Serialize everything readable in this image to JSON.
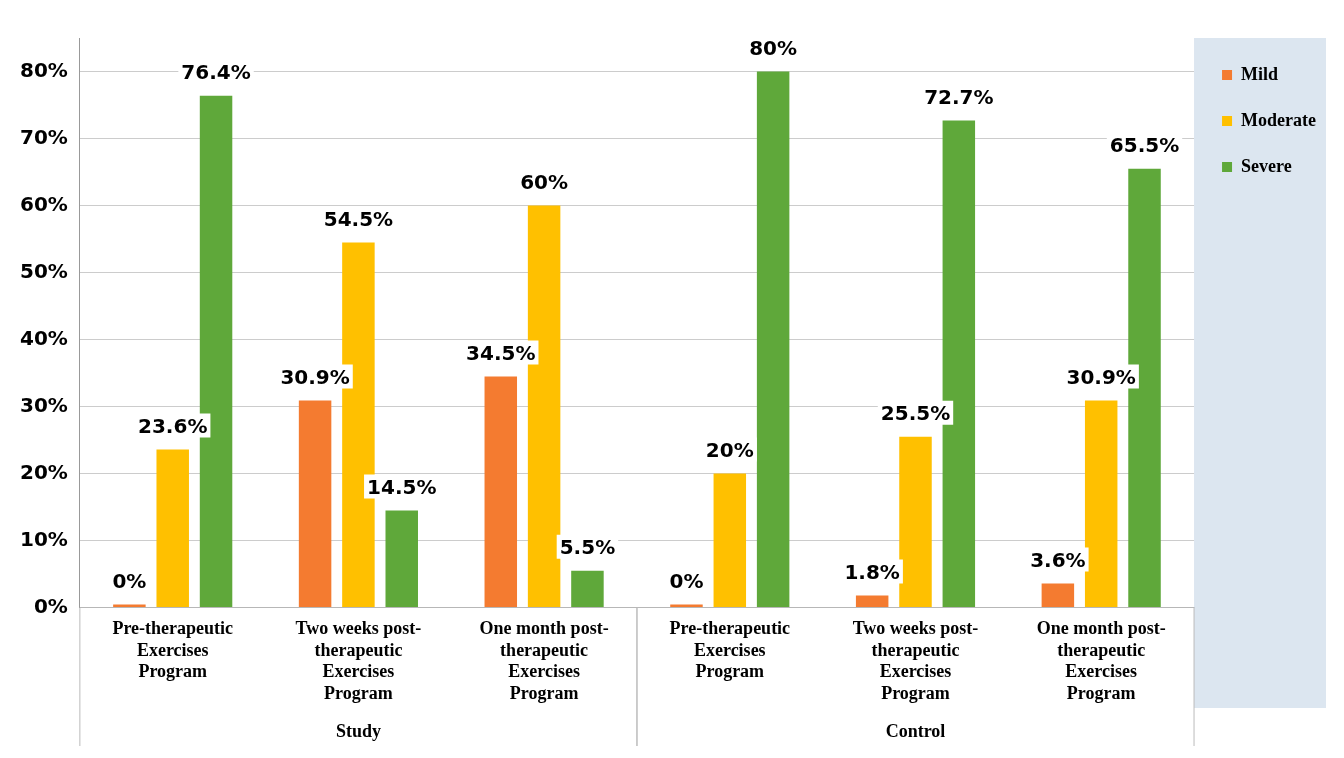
{
  "chart_data": {
    "type": "bar",
    "categories": [
      "Pre-therapeutic Exercises Program",
      "Two weeks post-therapeutic Exercises Program",
      "One month post-therapeutic Exercises Program",
      "Pre-therapeutic Exercises Program",
      "Two weeks post-therapeutic Exercises Program",
      "One month post-therapeutic Exercises Program"
    ],
    "series": [
      {
        "name": "Mild",
        "color": "#f47b30",
        "values": [
          0,
          30.9,
          34.5,
          0,
          1.8,
          3.6
        ],
        "value_labels": [
          "0%",
          "30.9%",
          "34.5%",
          "0%",
          "1.8%",
          "3.6%"
        ]
      },
      {
        "name": "Moderate",
        "color": "#ffc000",
        "values": [
          23.6,
          54.5,
          60,
          20,
          25.5,
          30.9
        ],
        "value_labels": [
          "23.6%",
          "54.5%",
          "60%",
          "20%",
          "25.5%",
          "30.9%"
        ]
      },
      {
        "name": "Severe",
        "color": "#5fa83a",
        "values": [
          76.4,
          14.5,
          5.5,
          80,
          72.7,
          65.5
        ],
        "value_labels": [
          "76.4%",
          "14.5%",
          "5.5%",
          "80%",
          "72.7%",
          "65.5%"
        ]
      }
    ],
    "ylim": [
      0,
      85
    ],
    "yticks": [
      {
        "value": 0,
        "label": "0%"
      },
      {
        "value": 10,
        "label": "10%"
      },
      {
        "value": 20,
        "label": "20%"
      },
      {
        "value": 30,
        "label": "30%"
      },
      {
        "value": 40,
        "label": "40%"
      },
      {
        "value": 50,
        "label": "50%"
      },
      {
        "value": 60,
        "label": "60%"
      },
      {
        "value": 70,
        "label": "70%"
      },
      {
        "value": 80,
        "label": "80%"
      }
    ],
    "grid": "y",
    "legend": "right",
    "annotations": [
      "Study",
      "Control"
    ]
  }
}
